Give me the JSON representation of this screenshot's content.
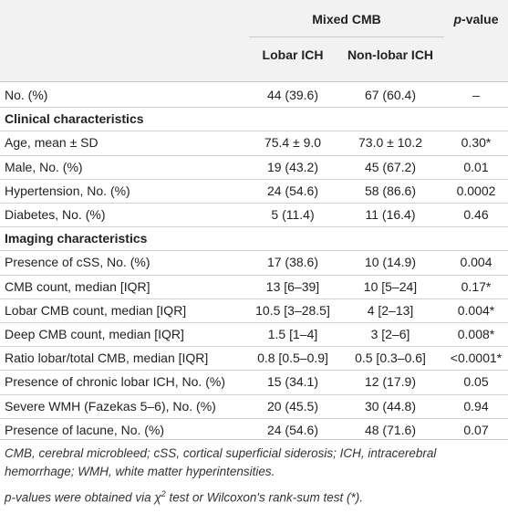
{
  "header": {
    "group_label": "Mixed CMB",
    "pvalue_italic": "p",
    "pvalue_rest": "-value",
    "col_lobar": "Lobar ICH",
    "col_nonlobar": "Non-lobar ICH"
  },
  "rows": [
    {
      "label": "No. (%)",
      "lobar": "44 (39.6)",
      "nonlobar": "67 (60.4)",
      "p": "–"
    },
    {
      "section": "Clinical characteristics"
    },
    {
      "label": "Age, mean ± SD",
      "lobar": "75.4 ± 9.0",
      "nonlobar": "73.0 ± 10.2",
      "p": "0.30*"
    },
    {
      "label": "Male, No. (%)",
      "lobar": "19 (43.2)",
      "nonlobar": "45 (67.2)",
      "p": "0.01"
    },
    {
      "label": "Hypertension, No. (%)",
      "lobar": "24 (54.6)",
      "nonlobar": "58 (86.6)",
      "p": "0.0002"
    },
    {
      "label": "Diabetes, No. (%)",
      "lobar": "5 (11.4)",
      "nonlobar": "11 (16.4)",
      "p": "0.46"
    },
    {
      "section": "Imaging characteristics"
    },
    {
      "label": "Presence of cSS, No. (%)",
      "lobar": "17 (38.6)",
      "nonlobar": "10 (14.9)",
      "p": "0.004"
    },
    {
      "label": "CMB count, median [IQR]",
      "lobar": "13 [6–39]",
      "nonlobar": "10 [5–24]",
      "p": "0.17*"
    },
    {
      "label": "Lobar CMB count, median [IQR]",
      "lobar": "10.5 [3–28.5]",
      "nonlobar": "4 [2–13]",
      "p": "0.004*"
    },
    {
      "label": "Deep CMB count, median [IQR]",
      "lobar": "1.5 [1–4]",
      "nonlobar": "3 [2–6]",
      "p": "0.008*"
    },
    {
      "label": "Ratio lobar/total CMB, median [IQR]",
      "lobar": "0.8 [0.5–0.9]",
      "nonlobar": "0.5 [0.3–0.6]",
      "p": "<0.0001*"
    },
    {
      "label": "Presence of chronic lobar ICH, No. (%)",
      "lobar": "15 (34.1)",
      "nonlobar": "12 (17.9)",
      "p": "0.05"
    },
    {
      "label": "Severe WMH (Fazekas 5–6), No. (%)",
      "lobar": "20 (45.5)",
      "nonlobar": "30 (44.8)",
      "p": "0.94"
    },
    {
      "label": "Presence of lacune, No. (%)",
      "lobar": "24 (54.6)",
      "nonlobar": "48 (71.6)",
      "p": "0.07"
    }
  ],
  "footnotes": {
    "abbrev_line1": "CMB, cerebral microbleed; cSS, cortical superficial siderosis; ICH, intracerebral",
    "abbrev_line2": "hemorrhage; WMH, white matter hyperintensities.",
    "method_prefix": "p-values were obtained via χ",
    "method_sup": "2",
    "method_suffix": " test or Wilcoxon's rank-sum test (*)."
  }
}
